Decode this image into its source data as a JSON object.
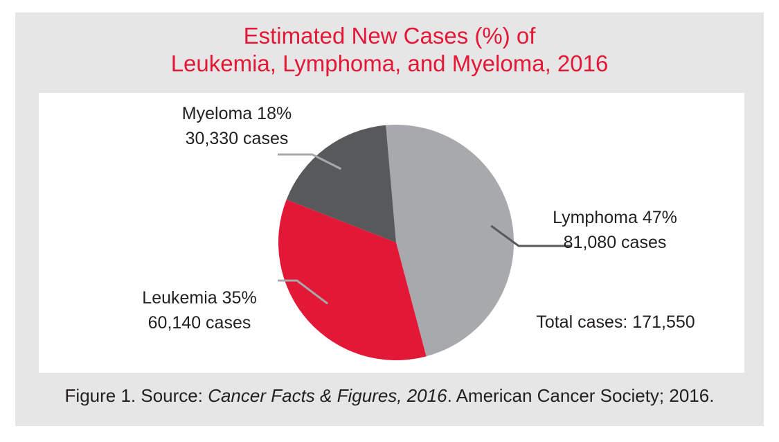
{
  "chart_data": {
    "type": "pie",
    "title_lines": [
      "Estimated New Cases (%) of",
      "Leukemia, Lymphoma, and Myeloma, 2016"
    ],
    "slices": [
      {
        "name": "Lymphoma",
        "percent_label": "Lymphoma 47%",
        "cases_label": "81,080 cases",
        "value": 81080,
        "color": "#a7a9ac"
      },
      {
        "name": "Leukemia",
        "percent_label": "Leukemia 35%",
        "cases_label": "60,140 cases",
        "value": 60140,
        "color": "#e31837"
      },
      {
        "name": "Myeloma",
        "percent_label": "Myeloma 18%",
        "cases_label": "30,330 cases",
        "value": 30330,
        "color": "#58595b"
      }
    ],
    "total_label": "Total cases: 171,550"
  },
  "caption": {
    "prefix": "Figure 1. Source: ",
    "source_title": "Cancer Facts & Figures, 2016",
    "suffix": ". American Cancer Society; 2016."
  },
  "colors": {
    "title": "#e31837",
    "background": "#e6e6e7",
    "panel": "#ffffff"
  }
}
